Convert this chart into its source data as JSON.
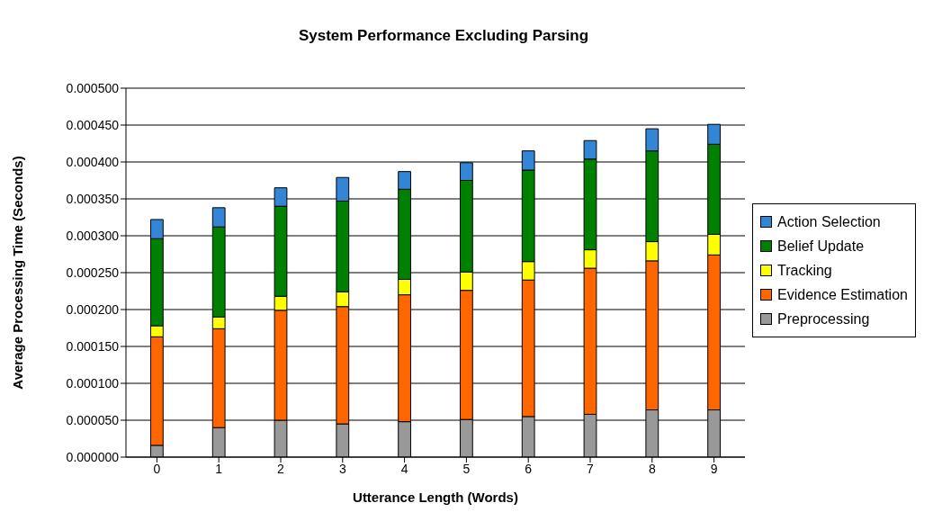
{
  "chart_data": {
    "type": "bar",
    "title": "System Performance Excluding Parsing",
    "xlabel": "Utterance Length (Words)",
    "ylabel": "Average Processing Time (Seconds)",
    "categories": [
      "0",
      "1",
      "2",
      "3",
      "4",
      "5",
      "6",
      "7",
      "8",
      "9"
    ],
    "stacked": true,
    "series": [
      {
        "name": "Preprocessing",
        "color": "#999999",
        "values": [
          1.6e-05,
          4e-05,
          5e-05,
          4.5e-05,
          4.8e-05,
          5.1e-05,
          5.5e-05,
          5.8e-05,
          6.4e-05,
          6.4e-05
        ]
      },
      {
        "name": "Evidence Estimation",
        "color": "#ff6600",
        "values": [
          0.000147,
          0.000134,
          0.000149,
          0.000159,
          0.000172,
          0.000175,
          0.000185,
          0.000198,
          0.000202,
          0.00021
        ]
      },
      {
        "name": "Tracking",
        "color": "#ffff00",
        "values": [
          1.5e-05,
          1.6e-05,
          1.9e-05,
          2e-05,
          2.1e-05,
          2.5e-05,
          2.5e-05,
          2.5e-05,
          2.6e-05,
          2.8e-05
        ]
      },
      {
        "name": "Belief Update",
        "color": "#008000",
        "values": [
          0.000118,
          0.000122,
          0.000122,
          0.000123,
          0.000122,
          0.000124,
          0.000124,
          0.000123,
          0.000123,
          0.000122
        ]
      },
      {
        "name": "Action Selection",
        "color": "#3385d6",
        "values": [
          2.6e-05,
          2.6e-05,
          2.5e-05,
          3.2e-05,
          2.4e-05,
          2.4e-05,
          2.6e-05,
          2.5e-05,
          3e-05,
          2.7e-05
        ]
      }
    ],
    "ylim": [
      0,
      0.0005
    ],
    "yticks": [
      {
        "value": 0,
        "label": "0.000000"
      },
      {
        "value": 5e-05,
        "label": "0.000050"
      },
      {
        "value": 0.0001,
        "label": "0.000100"
      },
      {
        "value": 0.00015,
        "label": "0.000150"
      },
      {
        "value": 0.0002,
        "label": "0.000200"
      },
      {
        "value": 0.00025,
        "label": "0.000250"
      },
      {
        "value": 0.0003,
        "label": "0.000300"
      },
      {
        "value": 0.00035,
        "label": "0.000350"
      },
      {
        "value": 0.0004,
        "label": "0.000400"
      },
      {
        "value": 0.00045,
        "label": "0.000450"
      },
      {
        "value": 0.0005,
        "label": "0.000500"
      }
    ],
    "grid": "y",
    "legend": "right"
  }
}
